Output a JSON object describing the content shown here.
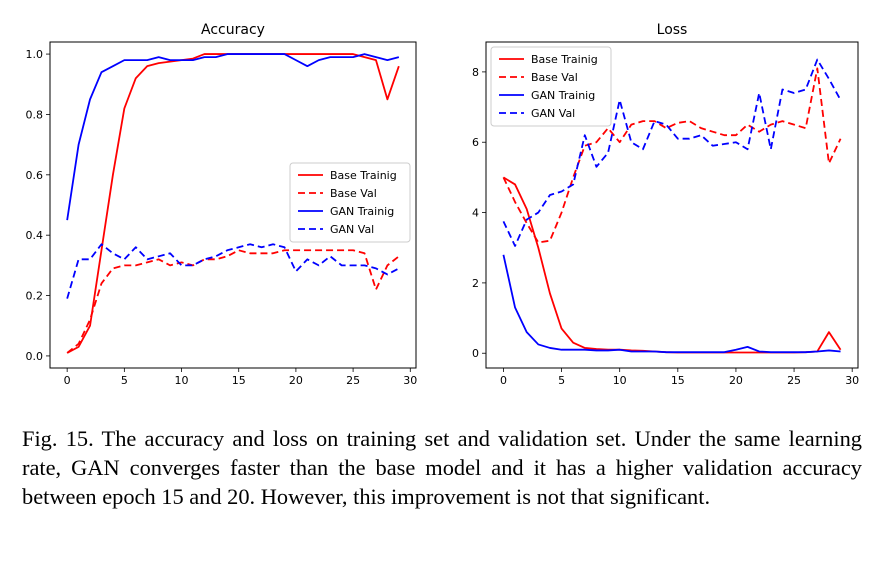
{
  "chart_data": [
    {
      "type": "line",
      "title": "Accuracy",
      "xlabel": "",
      "ylabel": "",
      "xlim": [
        -1.5,
        30.5
      ],
      "ylim": [
        -0.04,
        1.04
      ],
      "x_ticks": [
        0,
        5,
        10,
        15,
        20,
        25,
        30
      ],
      "y_ticks": [
        0.0,
        0.2,
        0.4,
        0.6,
        0.8,
        1.0
      ],
      "y_tick_labels": [
        "0.0",
        "0.2",
        "0.4",
        "0.6",
        "0.8",
        "1.0"
      ],
      "grid": false,
      "legend_position": "center-right",
      "x": [
        0,
        1,
        2,
        3,
        4,
        5,
        6,
        7,
        8,
        9,
        10,
        11,
        12,
        13,
        14,
        15,
        16,
        17,
        18,
        19,
        20,
        21,
        22,
        23,
        24,
        25,
        26,
        27,
        28,
        29
      ],
      "series": [
        {
          "name": "Base Trainig",
          "color": "#ff0000",
          "dash": "solid",
          "values": [
            0.01,
            0.03,
            0.1,
            0.35,
            0.6,
            0.82,
            0.92,
            0.96,
            0.97,
            0.975,
            0.98,
            0.985,
            1.0,
            1.0,
            1.0,
            1.0,
            1.0,
            1.0,
            1.0,
            1.0,
            1.0,
            1.0,
            1.0,
            1.0,
            1.0,
            1.0,
            0.99,
            0.98,
            0.85,
            0.96
          ]
        },
        {
          "name": "Base Val",
          "color": "#ff0000",
          "dash": "dashed",
          "values": [
            0.01,
            0.04,
            0.12,
            0.24,
            0.29,
            0.3,
            0.3,
            0.31,
            0.32,
            0.3,
            0.31,
            0.3,
            0.32,
            0.32,
            0.33,
            0.35,
            0.34,
            0.34,
            0.34,
            0.35,
            0.35,
            0.35,
            0.35,
            0.35,
            0.35,
            0.35,
            0.34,
            0.22,
            0.3,
            0.33
          ]
        },
        {
          "name": "GAN Trainig",
          "color": "#0000ff",
          "dash": "solid",
          "values": [
            0.45,
            0.7,
            0.85,
            0.94,
            0.96,
            0.98,
            0.98,
            0.98,
            0.99,
            0.98,
            0.98,
            0.98,
            0.99,
            0.99,
            1.0,
            1.0,
            1.0,
            1.0,
            1.0,
            1.0,
            0.98,
            0.96,
            0.98,
            0.99,
            0.99,
            0.99,
            1.0,
            0.99,
            0.98,
            0.99
          ]
        },
        {
          "name": "GAN Val",
          "color": "#0000ff",
          "dash": "dashed",
          "values": [
            0.19,
            0.32,
            0.32,
            0.37,
            0.34,
            0.32,
            0.36,
            0.32,
            0.33,
            0.34,
            0.3,
            0.3,
            0.32,
            0.33,
            0.35,
            0.36,
            0.37,
            0.36,
            0.37,
            0.36,
            0.28,
            0.32,
            0.3,
            0.33,
            0.3,
            0.3,
            0.3,
            0.29,
            0.27,
            0.29
          ]
        }
      ]
    },
    {
      "type": "line",
      "title": "Loss",
      "xlabel": "",
      "ylabel": "",
      "xlim": [
        -1.5,
        30.5
      ],
      "ylim": [
        -0.42,
        8.85
      ],
      "x_ticks": [
        0,
        5,
        10,
        15,
        20,
        25,
        30
      ],
      "y_ticks": [
        0,
        2,
        4,
        6,
        8
      ],
      "y_tick_labels": [
        "0",
        "2",
        "4",
        "6",
        "8"
      ],
      "grid": false,
      "legend_position": "upper-left",
      "x": [
        0,
        1,
        2,
        3,
        4,
        5,
        6,
        7,
        8,
        9,
        10,
        11,
        12,
        13,
        14,
        15,
        16,
        17,
        18,
        19,
        20,
        21,
        22,
        23,
        24,
        25,
        26,
        27,
        28,
        29
      ],
      "series": [
        {
          "name": "Base Trainig",
          "color": "#ff0000",
          "dash": "solid",
          "values": [
            5.0,
            4.8,
            4.1,
            3.0,
            1.7,
            0.7,
            0.3,
            0.15,
            0.12,
            0.1,
            0.1,
            0.08,
            0.07,
            0.05,
            0.03,
            0.02,
            0.02,
            0.02,
            0.02,
            0.02,
            0.02,
            0.02,
            0.02,
            0.02,
            0.02,
            0.02,
            0.03,
            0.05,
            0.6,
            0.1
          ]
        },
        {
          "name": "Base Val",
          "color": "#ff0000",
          "dash": "dashed",
          "values": [
            5.0,
            4.3,
            3.7,
            3.15,
            3.2,
            4.0,
            5.0,
            5.9,
            6.0,
            6.4,
            6.0,
            6.5,
            6.6,
            6.6,
            6.4,
            6.55,
            6.6,
            6.4,
            6.3,
            6.2,
            6.2,
            6.5,
            6.3,
            6.5,
            6.6,
            6.5,
            6.4,
            8.1,
            5.4,
            6.1
          ]
        },
        {
          "name": "GAN Trainig",
          "color": "#0000ff",
          "dash": "solid",
          "values": [
            2.8,
            1.3,
            0.6,
            0.25,
            0.15,
            0.1,
            0.1,
            0.1,
            0.08,
            0.08,
            0.1,
            0.05,
            0.05,
            0.05,
            0.03,
            0.03,
            0.03,
            0.03,
            0.03,
            0.03,
            0.1,
            0.18,
            0.05,
            0.03,
            0.03,
            0.03,
            0.03,
            0.05,
            0.08,
            0.05
          ]
        },
        {
          "name": "GAN Val",
          "color": "#0000ff",
          "dash": "dashed",
          "values": [
            3.75,
            3.05,
            3.8,
            4.0,
            4.5,
            4.6,
            4.8,
            6.2,
            5.3,
            5.7,
            7.2,
            6.0,
            5.8,
            6.6,
            6.5,
            6.1,
            6.1,
            6.2,
            5.9,
            5.95,
            6.0,
            5.8,
            7.4,
            5.8,
            7.5,
            7.4,
            7.5,
            8.35,
            7.8,
            7.2
          ]
        }
      ]
    }
  ],
  "caption": "Fig. 15.  The accuracy and loss on training set and validation set. Under the same learning rate, GAN converges faster than the base model and it has a higher validation accuracy between epoch 15 and 20. However, this improvement is not that significant."
}
